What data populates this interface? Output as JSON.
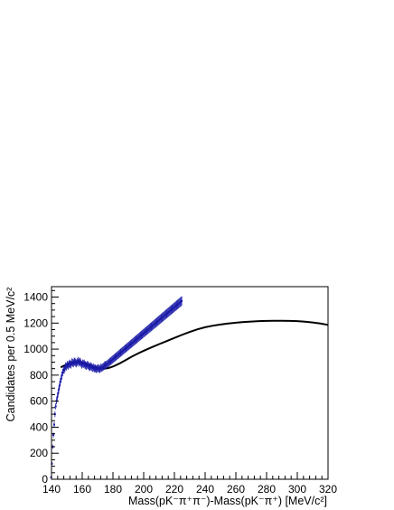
{
  "chart_data": {
    "type": "scatter",
    "title": "",
    "xlabel": "Mass(pK⁻π⁺π⁻)-Mass(pK⁻π⁺) [MeV/c²]",
    "ylabel": "Candidates per 0.5 MeV/c²",
    "xlim": [
      140,
      320
    ],
    "ylim": [
      0,
      1480
    ],
    "x_ticks": [
      140,
      160,
      180,
      200,
      220,
      240,
      260,
      280,
      300,
      320
    ],
    "y_ticks": [
      0,
      200,
      400,
      600,
      800,
      1000,
      1200,
      1400
    ],
    "bin_width": 0.5,
    "grid": false,
    "colors": {
      "data": "#1a1aa8",
      "fit": "#000000",
      "axis": "#000000"
    },
    "series": [
      {
        "type": "line",
        "description_points": "fitted curve",
        "x": [
          146,
          148,
          150,
          152,
          154,
          156,
          158,
          160,
          162,
          164,
          166,
          168,
          170,
          172,
          174,
          176,
          178,
          180,
          184,
          188,
          192,
          196,
          200,
          205,
          210,
          215,
          220,
          225,
          230,
          235,
          240,
          245,
          250,
          255,
          260,
          265,
          270,
          275,
          280,
          285,
          290,
          295,
          300,
          305,
          310,
          315,
          320
        ],
        "values": [
          860,
          872,
          883,
          892,
          898,
          900,
          900,
          897,
          890,
          880,
          870,
          862,
          856,
          852,
          850,
          852,
          858,
          866,
          888,
          914,
          941,
          965,
          987,
          1013,
          1038,
          1062,
          1086,
          1110,
          1132,
          1152,
          1168,
          1180,
          1189,
          1197,
          1203,
          1208,
          1212,
          1215,
          1217,
          1218,
          1218,
          1217,
          1215,
          1211,
          1205,
          1197,
          1186
        ]
      },
      {
        "type": "scatter",
        "x_start": 139.75,
        "x_step": 0.5,
        "error_bar": "sqrt(N)",
        "values": [
          15,
          120,
          250,
          340,
          420,
          500,
          560,
          600,
          630,
          660,
          690,
          720,
          750,
          770,
          800,
          820,
          840,
          840,
          855,
          870,
          865,
          880,
          870,
          880,
          890,
          885,
          880,
          900,
          895,
          890,
          900,
          905,
          895,
          890,
          900,
          910,
          895,
          905,
          900,
          890,
          880,
          890,
          885,
          890,
          880,
          875,
          870,
          880,
          875,
          870,
          860,
          865,
          870,
          860,
          855,
          860,
          850,
          855,
          850,
          845,
          850,
          855,
          850,
          845,
          850,
          860,
          855,
          860,
          865,
          870,
          880,
          875,
          880,
          885,
          890,
          895,
          900,
          905,
          910,
          915,
          920,
          925,
          930,
          935,
          940,
          945,
          950,
          955,
          960,
          965,
          970,
          975,
          980,
          985,
          990,
          995,
          1000,
          1005,
          1010,
          1015,
          1020,
          1025,
          1030,
          1035,
          1040,
          1045,
          1050,
          1055,
          1060,
          1065,
          1070,
          1075,
          1080,
          1085,
          1090,
          1095,
          1100,
          1105,
          1110,
          1115,
          1120,
          1125,
          1130,
          1135,
          1140,
          1145,
          1150,
          1155,
          1160,
          1165,
          1170,
          1175,
          1180,
          1185,
          1190,
          1195,
          1200,
          1205,
          1210,
          1215,
          1220,
          1225,
          1230,
          1235,
          1240,
          1245,
          1250,
          1255,
          1260,
          1265,
          1270,
          1275,
          1280,
          1285,
          1290,
          1295,
          1300,
          1305,
          1310,
          1315,
          1320,
          1325,
          1330,
          1335,
          1340,
          1345,
          1350,
          1355,
          1360,
          1365,
          1370
        ]
      }
    ]
  }
}
